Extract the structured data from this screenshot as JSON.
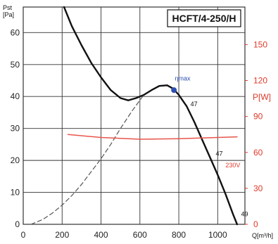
{
  "chart_data": {
    "type": "line",
    "title": "HCFT/4-250/H",
    "y_left": {
      "label_top": "Pst",
      "label_unit": "[Pa]",
      "range": [
        0,
        68
      ],
      "ticks": [
        0,
        10,
        20,
        30,
        40,
        50,
        60
      ]
    },
    "y_right": {
      "label": "P[W]",
      "range": [
        0,
        181.33
      ],
      "ticks": [
        0,
        30,
        60,
        90,
        120,
        150
      ]
    },
    "x": {
      "label": "Q[m³/h]",
      "range": [
        0,
        1140
      ],
      "ticks": [
        0,
        200,
        400,
        600,
        800,
        1000
      ]
    },
    "series": [
      {
        "axis": "left",
        "style": "solid",
        "points": [
          [
            210,
            68
          ],
          [
            250,
            62
          ],
          [
            300,
            56
          ],
          [
            350,
            50.5
          ],
          [
            400,
            46
          ],
          [
            450,
            42
          ],
          [
            500,
            39.5
          ],
          [
            540,
            38.8
          ],
          [
            580,
            39.5
          ],
          [
            620,
            40.5
          ],
          [
            660,
            42
          ],
          [
            700,
            43.3
          ],
          [
            740,
            43.5
          ],
          [
            770,
            42.5
          ],
          [
            800,
            40.5
          ],
          [
            840,
            37
          ],
          [
            880,
            32
          ],
          [
            920,
            26.5
          ],
          [
            960,
            21
          ],
          [
            1000,
            15.5
          ],
          [
            1040,
            9.5
          ],
          [
            1080,
            3
          ],
          [
            1100,
            0
          ]
        ]
      },
      {
        "axis": "left",
        "style": "dashed",
        "points": [
          [
            40,
            0
          ],
          [
            100,
            1.5
          ],
          [
            150,
            3.5
          ],
          [
            200,
            6
          ],
          [
            250,
            9
          ],
          [
            300,
            12.5
          ],
          [
            350,
            16.5
          ],
          [
            400,
            20.5
          ],
          [
            450,
            25
          ],
          [
            500,
            30
          ],
          [
            560,
            35.5
          ],
          [
            620,
            40.5
          ]
        ]
      },
      {
        "name": "230V",
        "axis": "right",
        "style": "solid",
        "color": "#e8554a",
        "points": [
          [
            230,
            75
          ],
          [
            400,
            72.5
          ],
          [
            600,
            71
          ],
          [
            800,
            71.5
          ],
          [
            1000,
            72.5
          ],
          [
            1100,
            73
          ]
        ]
      }
    ],
    "annotations": [
      {
        "text": "ηmax",
        "x": 780,
        "y": 45,
        "color": "#2d4fb3"
      },
      {
        "text": "47",
        "x": 860,
        "y": 37,
        "color": "#111111"
      },
      {
        "text": "47",
        "x": 990,
        "y": 21.5,
        "color": "#111111"
      },
      {
        "text": "230V",
        "x": 1040,
        "y": 17.8,
        "color": "#e03a2a"
      },
      {
        "text": "49",
        "x": 1120,
        "y": 2.5,
        "color": "#111111"
      }
    ],
    "eta_point": {
      "x": 775,
      "y": 42
    },
    "grid": true
  },
  "colors": {
    "curve": "#111111",
    "dashed": "#555555",
    "power": "#e8554a",
    "right_axis": "#e03a2a",
    "eta": "#2d4fb3",
    "grid": "#333333"
  }
}
